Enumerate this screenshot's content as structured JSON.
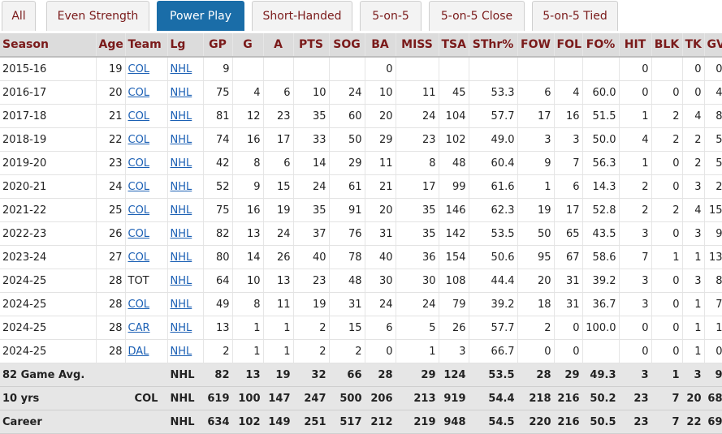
{
  "tabs": [
    {
      "label": "All",
      "active": false
    },
    {
      "label": "Even Strength",
      "active": false
    },
    {
      "label": "Power Play",
      "active": true
    },
    {
      "label": "Short-Handed",
      "active": false
    },
    {
      "label": "5-on-5",
      "active": false
    },
    {
      "label": "5-on-5 Close",
      "active": false
    },
    {
      "label": "5-on-5 Tied",
      "active": false
    }
  ],
  "columns": [
    "Season",
    "Age",
    "Team",
    "Lg",
    "GP",
    "G",
    "A",
    "PTS",
    "SOG",
    "BA",
    "MISS",
    "TSA",
    "SThr%",
    "FOW",
    "FOL",
    "FO%",
    "HIT",
    "BLK",
    "TK",
    "GV"
  ],
  "rows": [
    [
      "2015-16",
      "19",
      "COL",
      "NHL",
      "9",
      "",
      "",
      "",
      "",
      "0",
      "",
      "",
      "",
      "",
      "",
      "",
      "0",
      "",
      "0",
      "0"
    ],
    [
      "2016-17",
      "20",
      "COL",
      "NHL",
      "75",
      "4",
      "6",
      "10",
      "24",
      "10",
      "11",
      "45",
      "53.3",
      "6",
      "4",
      "60.0",
      "0",
      "0",
      "0",
      "4"
    ],
    [
      "2017-18",
      "21",
      "COL",
      "NHL",
      "81",
      "12",
      "23",
      "35",
      "60",
      "20",
      "24",
      "104",
      "57.7",
      "17",
      "16",
      "51.5",
      "1",
      "2",
      "4",
      "8"
    ],
    [
      "2018-19",
      "22",
      "COL",
      "NHL",
      "74",
      "16",
      "17",
      "33",
      "50",
      "29",
      "23",
      "102",
      "49.0",
      "3",
      "3",
      "50.0",
      "4",
      "2",
      "2",
      "5"
    ],
    [
      "2019-20",
      "23",
      "COL",
      "NHL",
      "42",
      "8",
      "6",
      "14",
      "29",
      "11",
      "8",
      "48",
      "60.4",
      "9",
      "7",
      "56.3",
      "1",
      "0",
      "2",
      "5"
    ],
    [
      "2020-21",
      "24",
      "COL",
      "NHL",
      "52",
      "9",
      "15",
      "24",
      "61",
      "21",
      "17",
      "99",
      "61.6",
      "1",
      "6",
      "14.3",
      "2",
      "0",
      "3",
      "2"
    ],
    [
      "2021-22",
      "25",
      "COL",
      "NHL",
      "75",
      "16",
      "19",
      "35",
      "91",
      "20",
      "35",
      "146",
      "62.3",
      "19",
      "17",
      "52.8",
      "2",
      "2",
      "4",
      "15"
    ],
    [
      "2022-23",
      "26",
      "COL",
      "NHL",
      "82",
      "13",
      "24",
      "37",
      "76",
      "31",
      "35",
      "142",
      "53.5",
      "50",
      "65",
      "43.5",
      "3",
      "0",
      "3",
      "9"
    ],
    [
      "2023-24",
      "27",
      "COL",
      "NHL",
      "80",
      "14",
      "26",
      "40",
      "78",
      "40",
      "36",
      "154",
      "50.6",
      "95",
      "67",
      "58.6",
      "7",
      "1",
      "1",
      "13"
    ],
    [
      "2024-25",
      "28",
      "TOT",
      "NHL",
      "64",
      "10",
      "13",
      "23",
      "48",
      "30",
      "30",
      "108",
      "44.4",
      "20",
      "31",
      "39.2",
      "3",
      "0",
      "3",
      "8"
    ],
    [
      "2024-25",
      "28",
      "COL",
      "NHL",
      "49",
      "8",
      "11",
      "19",
      "31",
      "24",
      "24",
      "79",
      "39.2",
      "18",
      "31",
      "36.7",
      "3",
      "0",
      "1",
      "7"
    ],
    [
      "2024-25",
      "28",
      "CAR",
      "NHL",
      "13",
      "1",
      "1",
      "2",
      "15",
      "6",
      "5",
      "26",
      "57.7",
      "2",
      "0",
      "100.0",
      "0",
      "0",
      "1",
      "1"
    ],
    [
      "2024-25",
      "28",
      "DAL",
      "NHL",
      "2",
      "1",
      "1",
      "2",
      "2",
      "0",
      "1",
      "3",
      "66.7",
      "0",
      "0",
      "",
      "0",
      "0",
      "1",
      "0"
    ]
  ],
  "footer_rows": [
    [
      "82 Game Avg.",
      "",
      "",
      "NHL",
      "82",
      "13",
      "19",
      "32",
      "66",
      "28",
      "29",
      "124",
      "53.5",
      "28",
      "29",
      "49.3",
      "3",
      "1",
      "3",
      "9"
    ],
    [
      "10 yrs",
      "",
      "COL",
      "NHL",
      "619",
      "100",
      "147",
      "247",
      "500",
      "206",
      "213",
      "919",
      "54.4",
      "218",
      "216",
      "50.2",
      "23",
      "7",
      "20",
      "68"
    ],
    [
      "Career",
      "",
      "",
      "NHL",
      "634",
      "102",
      "149",
      "251",
      "517",
      "212",
      "219",
      "948",
      "54.5",
      "220",
      "216",
      "50.5",
      "23",
      "7",
      "22",
      "69"
    ]
  ],
  "colors": {
    "header_text": "#7a1a1a",
    "active_tab": "#1a6da8",
    "link": "#1a5fb4",
    "header_bg": "#dcdcdc"
  }
}
